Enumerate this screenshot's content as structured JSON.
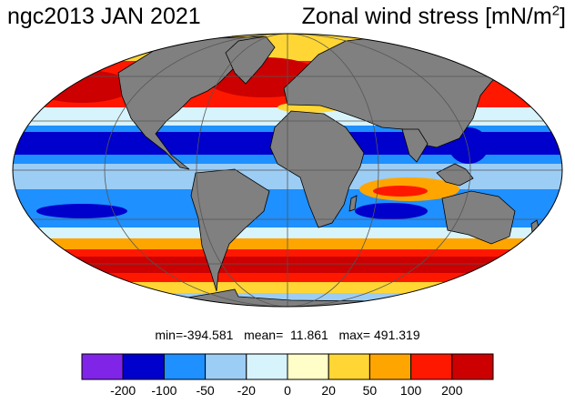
{
  "title": {
    "left": "ngc2013 JAN 2021",
    "right_main": "Zonal wind stress [mN/m",
    "right_sup": "2",
    "right_tail": "]"
  },
  "stats": {
    "text": "min=-394.581   mean=  11.861   max= 491.319"
  },
  "colorbar": {
    "colors": [
      "#8025e8",
      "#0000cc",
      "#1e90ff",
      "#9ccdf5",
      "#d7f3fb",
      "#fffdc8",
      "#ffd633",
      "#ffa500",
      "#ff1800",
      "#cc0000"
    ],
    "ticks": [
      "-200",
      "-100",
      "-50",
      "-20",
      "0",
      "20",
      "50",
      "100",
      "200"
    ]
  },
  "colors": {
    "land": "#808080",
    "coast": "#000000",
    "grid": "#555555"
  }
}
